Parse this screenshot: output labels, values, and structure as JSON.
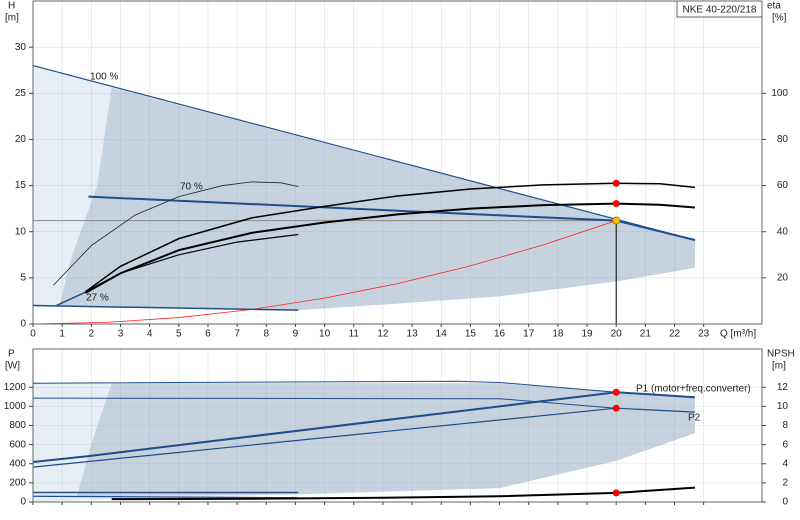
{
  "chart_data": [
    {
      "type": "line",
      "title": "NKE 40-220/218",
      "ylabel": "H",
      "yunit": "[m]",
      "y2label": "eta",
      "y2unit": "[%]",
      "xlabel": "Q [m³/h]",
      "xlim": [
        0,
        25
      ],
      "ylim": [
        0,
        35
      ],
      "y2lim": [
        0,
        140
      ],
      "xticks": [
        0,
        1,
        2,
        3,
        4,
        5,
        6,
        7,
        8,
        9,
        10,
        11,
        12,
        13,
        14,
        15,
        16,
        17,
        18,
        19,
        20,
        21,
        22,
        23
      ],
      "yticks": [
        0,
        5,
        10,
        15,
        20,
        25,
        30
      ],
      "y2ticks": [
        20,
        40,
        60,
        80,
        100
      ],
      "grid": true,
      "xtick_labels": true,
      "regions": [
        {
          "color": "#e7eef6",
          "x": [
            0,
            22.7,
            22.7,
            20,
            16,
            12,
            9.1,
            0
          ],
          "y": [
            28,
            9.1,
            6.1,
            4.6,
            3,
            2.1,
            1.5,
            2
          ]
        },
        {
          "color": "#c6d3df",
          "x": [
            2.7,
            22.7,
            22.7,
            20,
            16,
            12,
            9.1,
            0.9,
            1.3,
            2.2
          ],
          "y": [
            25.6,
            9.1,
            6.1,
            4.6,
            3,
            2.1,
            1.5,
            1.9,
            7,
            15
          ]
        }
      ],
      "series": [
        {
          "color": "#888888",
          "width": 1,
          "x": [
            0,
            20
          ],
          "y": [
            11.2,
            11.2
          ]
        },
        {
          "color": "#000000",
          "width": 1,
          "x": [
            20,
            20
          ],
          "y": [
            11.2,
            0
          ]
        },
        {
          "color": "#ff2020",
          "width": 0.8,
          "x": [
            0,
            2.5,
            5,
            7.5,
            10,
            12.5,
            15,
            17.5,
            20
          ],
          "y": [
            0,
            0.175,
            0.7,
            1.575,
            2.8,
            4.375,
            6.3,
            8.575,
            11.2
          ]
        },
        {
          "color": "#1f4e8c",
          "width": 1.2,
          "x": [
            0,
            22.7
          ],
          "y": [
            28,
            9.1
          ]
        },
        {
          "color": "#1f4e8c",
          "width": 2,
          "x": [
            1.9,
            20,
            22.7
          ],
          "y": [
            13.8,
            11.2,
            9.1
          ]
        },
        {
          "color": "#1f4e8c",
          "width": 1.5,
          "x": [
            0,
            9.1
          ],
          "y": [
            2,
            1.5
          ]
        },
        {
          "color": "#1f4e8c",
          "width": 1.5,
          "x": [
            0.8,
            1.9
          ],
          "y": [
            2,
            3.6
          ]
        },
        {
          "color": "#222222",
          "width": 0.8,
          "x": [
            0.7,
            2,
            3.5,
            5,
            6.5,
            7.5,
            8.5,
            9.1
          ],
          "y": [
            4.2,
            8.5,
            11.8,
            13.8,
            15,
            15.4,
            15.3,
            14.9
          ]
        },
        {
          "color": "#000000",
          "width": 1.5,
          "axis": "y2",
          "x": [
            1.8,
            3,
            5,
            7.5,
            10,
            12.5,
            15,
            17.5,
            20,
            21.5,
            22.7
          ],
          "y": [
            14,
            25,
            37,
            46,
            51,
            55.5,
            58.5,
            60.3,
            61,
            60.8,
            59.2
          ]
        },
        {
          "color": "#000000",
          "width": 2,
          "axis": "y2",
          "x": [
            1.8,
            3,
            5,
            7.5,
            10,
            12.5,
            15,
            17.5,
            20,
            21.5,
            22.7
          ],
          "y": [
            13.5,
            22,
            32,
            39.5,
            44,
            47.5,
            50,
            51.5,
            52.2,
            51.7,
            50.5
          ]
        },
        {
          "color": "#000000",
          "width": 1.2,
          "axis": "y2",
          "x": [
            1.8,
            3,
            5,
            7,
            9.1
          ],
          "y": [
            14,
            22,
            30,
            35.5,
            38.8
          ]
        }
      ],
      "markers": [
        {
          "color": "#ff0000",
          "axis": "y2",
          "x": 20,
          "y": 61
        },
        {
          "color": "#ff0000",
          "axis": "y2",
          "x": 20,
          "y": 52.2
        },
        {
          "color": "#ffc000",
          "x": 20,
          "y": 11.2
        }
      ],
      "annotations": [
        "100 %",
        "70 %",
        "27 %"
      ]
    },
    {
      "type": "line",
      "ylabel": "P",
      "yunit": "[W]",
      "y2label": "NPSH",
      "y2unit": "[m]",
      "xlim": [
        0,
        25
      ],
      "ylim": [
        0,
        1600
      ],
      "y2lim": [
        0,
        16
      ],
      "xticks": [
        0,
        1,
        2,
        3,
        4,
        5,
        6,
        7,
        8,
        9,
        10,
        11,
        12,
        13,
        14,
        15,
        16,
        17,
        18,
        19,
        20,
        21,
        22,
        23
      ],
      "yticks": [
        0,
        200,
        400,
        600,
        800,
        1000,
        1200
      ],
      "y2ticks": [
        0,
        2,
        4,
        6,
        8,
        10,
        12
      ],
      "grid": true,
      "xtick_labels": false,
      "regions": [
        {
          "color": "#e7eef6",
          "x": [
            0,
            2.7,
            16,
            22.7,
            22.7,
            20,
            16,
            9.1,
            0
          ],
          "y": [
            1242,
            1242,
            1242,
            1100,
            720,
            430,
            145,
            80,
            0
          ]
        },
        {
          "color": "#c6d3df",
          "x": [
            2.7,
            16,
            22.7,
            22.7,
            20,
            16,
            9.1,
            1.5,
            2.1
          ],
          "y": [
            1242,
            1242,
            1100,
            720,
            430,
            145,
            80,
            60,
            700
          ]
        }
      ],
      "series": [
        {
          "color": "#1f4e8c",
          "width": 1,
          "x": [
            0,
            14.5,
            16,
            20,
            22.7
          ],
          "y": [
            1242,
            1263,
            1250,
            1148,
            1096
          ]
        },
        {
          "color": "#1f4e8c",
          "width": 1,
          "x": [
            0,
            16,
            20
          ],
          "y": [
            1086,
            1080,
            981
          ]
        },
        {
          "color": "#1f4e8c",
          "width": 2,
          "x": [
            0,
            1.9,
            20,
            22.7
          ],
          "y": [
            418,
            480,
            1148,
            1096
          ]
        },
        {
          "color": "#1f4e8c",
          "width": 1.2,
          "x": [
            0,
            20,
            22.7
          ],
          "y": [
            365,
            981,
            940
          ]
        },
        {
          "color": "#1f4e8c",
          "width": 1.5,
          "x": [
            0,
            9.1
          ],
          "y": [
            100,
            100
          ]
        },
        {
          "color": "#1f4e8c",
          "width": 1.2,
          "x": [
            0,
            9.1
          ],
          "y": [
            60,
            45
          ]
        },
        {
          "color": "#000000",
          "width": 2,
          "axis": "y2",
          "x": [
            2.7,
            8,
            12,
            16,
            20,
            22.7
          ],
          "y": [
            0.3,
            0.35,
            0.45,
            0.6,
            0.95,
            1.5
          ]
        }
      ],
      "markers": [
        {
          "color": "#ff0000",
          "x": 20,
          "y": 1148
        },
        {
          "color": "#ff0000",
          "x": 20,
          "y": 981
        },
        {
          "color": "#ff0000",
          "axis": "y2",
          "x": 20,
          "y": 0.95
        }
      ],
      "annotations": [
        "P1 (motor+freq.converter)",
        "P2"
      ]
    }
  ]
}
